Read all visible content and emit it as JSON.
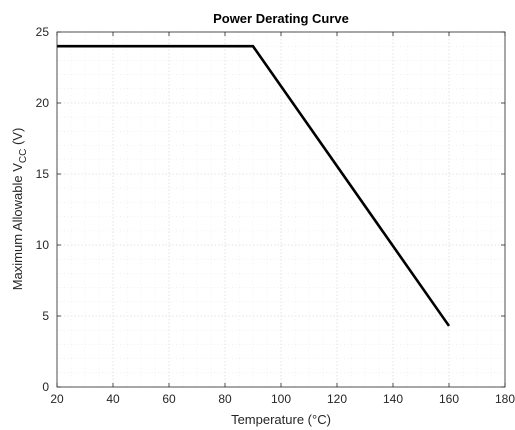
{
  "chart_data": {
    "type": "line",
    "title": "Power Derating Curve",
    "xlabel": "Temperature (°C)",
    "ylabel_prefix": "Maximum Allowable V",
    "ylabel_subscript": "CC",
    "ylabel_suffix": " (V)",
    "xlim": [
      20,
      180
    ],
    "ylim": [
      0,
      25
    ],
    "xticks": [
      20,
      40,
      60,
      80,
      100,
      120,
      140,
      160,
      180
    ],
    "yticks": [
      0,
      5,
      10,
      15,
      20,
      25
    ],
    "grid": true,
    "minor_grid": true,
    "series": [
      {
        "color": "#000000",
        "x": [
          20,
          90,
          160
        ],
        "y": [
          24,
          24,
          4.3
        ]
      }
    ]
  }
}
